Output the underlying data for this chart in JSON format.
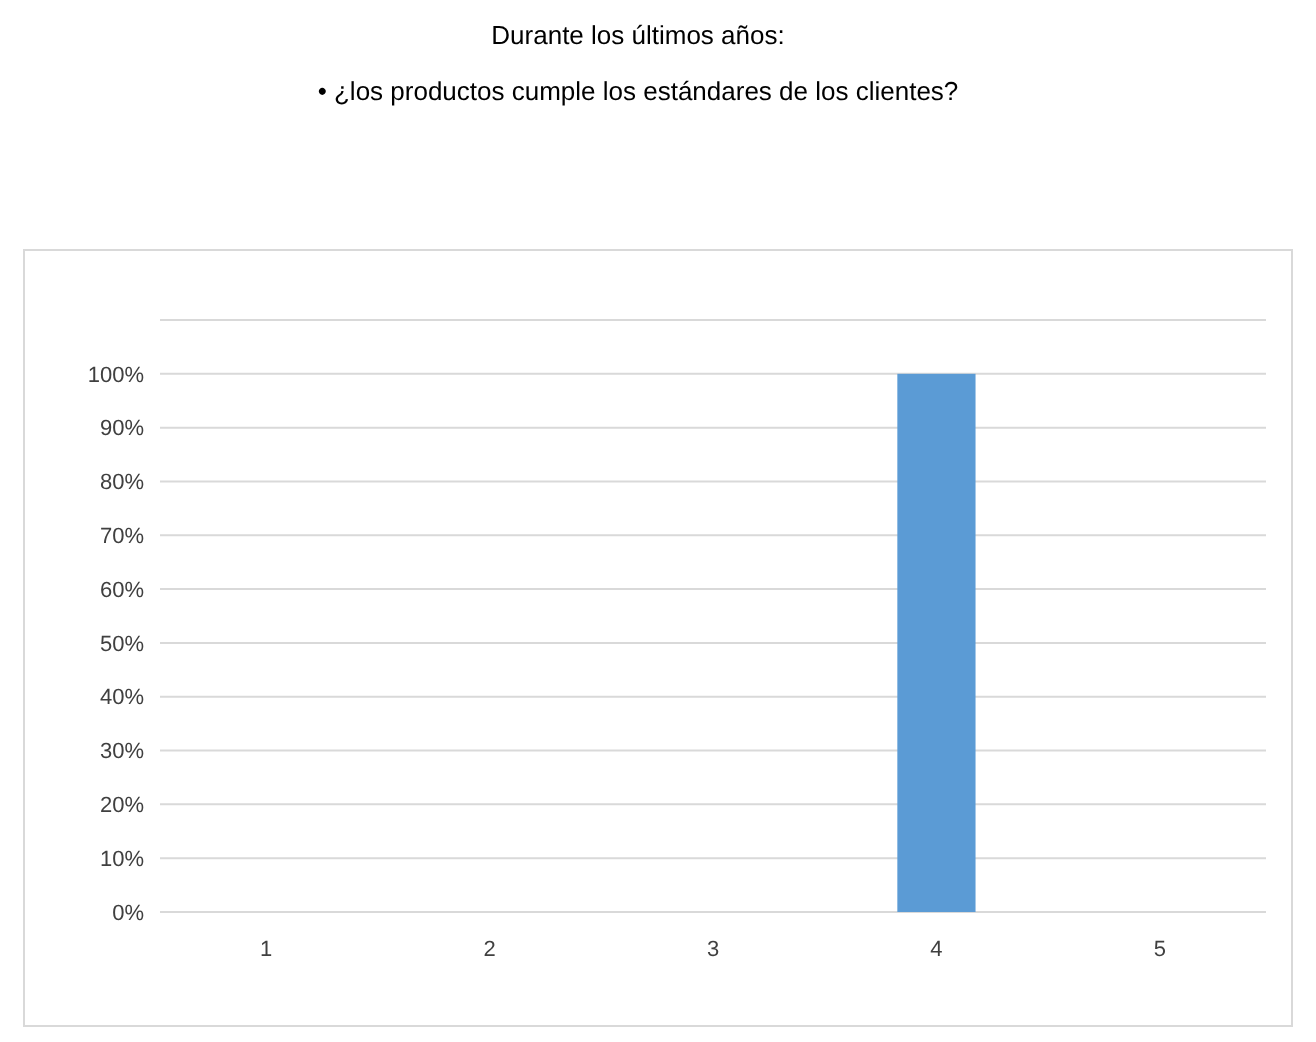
{
  "chart_data": {
    "type": "bar",
    "title": "Durante los últimos años:",
    "subtitle": "• ¿los productos cumple los estándares de los clientes?",
    "categories": [
      "1",
      "2",
      "3",
      "4",
      "5"
    ],
    "values": [
      0,
      0,
      0,
      100,
      0
    ],
    "color": "#5b9bd5",
    "ylim": [
      0,
      110
    ],
    "yticks": [
      {
        "value": 0,
        "label": "0%"
      },
      {
        "value": 10,
        "label": "10%"
      },
      {
        "value": 20,
        "label": "20%"
      },
      {
        "value": 30,
        "label": "30%"
      },
      {
        "value": 40,
        "label": "40%"
      },
      {
        "value": 50,
        "label": "50%"
      },
      {
        "value": 60,
        "label": "60%"
      },
      {
        "value": 70,
        "label": "70%"
      },
      {
        "value": 80,
        "label": "80%"
      },
      {
        "value": 90,
        "label": "90%"
      },
      {
        "value": 100,
        "label": "100%"
      },
      {
        "value": 110,
        "label": null
      }
    ],
    "grid": true
  }
}
